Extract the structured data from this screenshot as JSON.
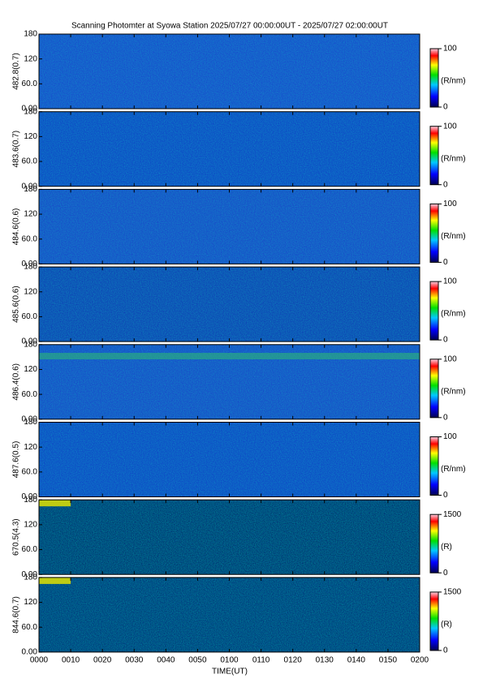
{
  "chart_data": {
    "type": "heatmap",
    "title": "Scanning Photomter at Syowa Station 2025/07/27 00:00:00UT - 2025/07/27 02:00:00UT",
    "xlabel": "TIME(UT)",
    "xlim": [
      0,
      120
    ],
    "xticks": [
      {
        "value": 0,
        "label": "0000"
      },
      {
        "value": 10,
        "label": "0010"
      },
      {
        "value": 20,
        "label": "0020"
      },
      {
        "value": 30,
        "label": "0030"
      },
      {
        "value": 40,
        "label": "0040"
      },
      {
        "value": 50,
        "label": "0050"
      },
      {
        "value": 60,
        "label": "0100"
      },
      {
        "value": 70,
        "label": "0110"
      },
      {
        "value": 80,
        "label": "0120"
      },
      {
        "value": 90,
        "label": "0130"
      },
      {
        "value": 100,
        "label": "0140"
      },
      {
        "value": 110,
        "label": "0150"
      },
      {
        "value": 120,
        "label": "0200"
      }
    ],
    "panels": [
      {
        "ylabel": "482.8(0.7)",
        "ylim": [
          0,
          180
        ],
        "yticks": [
          {
            "value": 0,
            "label": "0.00"
          },
          {
            "value": 60,
            "label": "60.0"
          },
          120,
          180
        ],
        "clim": [
          0,
          100
        ],
        "cticks": [
          0,
          100
        ],
        "clabel": "(R/nm)"
      },
      {
        "ylabel": "483.6(0.7)",
        "ylim": [
          0,
          180
        ],
        "yticks": [
          {
            "value": 0,
            "label": "0.00"
          },
          {
            "value": 60,
            "label": "60.0"
          },
          120,
          180
        ],
        "clim": [
          0,
          100
        ],
        "cticks": [
          0,
          100
        ],
        "clabel": "(R/nm)"
      },
      {
        "ylabel": "484.6(0.6)",
        "ylim": [
          0,
          180
        ],
        "yticks": [
          {
            "value": 0,
            "label": "0.00"
          },
          {
            "value": 60,
            "label": "60.0"
          },
          120,
          180
        ],
        "clim": [
          0,
          100
        ],
        "cticks": [
          0,
          100
        ],
        "clabel": "(R/nm)"
      },
      {
        "ylabel": "485.6(0.6)",
        "ylim": [
          0,
          180
        ],
        "yticks": [
          {
            "value": 0,
            "label": "0.00"
          },
          {
            "value": 60,
            "label": "60.0"
          },
          120,
          180
        ],
        "clim": [
          0,
          100
        ],
        "cticks": [
          0,
          100
        ],
        "clabel": "(R/nm)"
      },
      {
        "ylabel": "486.4(0.6)",
        "ylim": [
          0,
          180
        ],
        "yticks": [
          {
            "value": 0,
            "label": "0.00"
          },
          {
            "value": 60,
            "label": "60.0"
          },
          120,
          180
        ],
        "clim": [
          0,
          100
        ],
        "cticks": [
          0,
          100
        ],
        "clabel": "(R/nm)"
      },
      {
        "ylabel": "487.6(0.5)",
        "ylim": [
          0,
          180
        ],
        "yticks": [
          {
            "value": 0,
            "label": "0.00"
          },
          {
            "value": 60,
            "label": "60.0"
          },
          120,
          180
        ],
        "clim": [
          0,
          100
        ],
        "cticks": [
          0,
          100
        ],
        "clabel": "(R/nm)"
      },
      {
        "ylabel": "670.5(4.3)",
        "ylim": [
          0,
          180
        ],
        "yticks": [
          {
            "value": 0,
            "label": "0.00"
          },
          {
            "value": 60,
            "label": "60.0"
          },
          120,
          180
        ],
        "clim": [
          0,
          1500
        ],
        "cticks": [
          0,
          1500
        ],
        "clabel": "(R)"
      },
      {
        "ylabel": "844.6(0.7)",
        "ylim": [
          0,
          180
        ],
        "yticks": [
          {
            "value": 0,
            "label": "0.00"
          },
          {
            "value": 60,
            "label": "60.0"
          },
          120,
          180
        ],
        "clim": [
          0,
          1500
        ],
        "cticks": [
          0,
          1500
        ],
        "clabel": "(R)"
      }
    ]
  }
}
